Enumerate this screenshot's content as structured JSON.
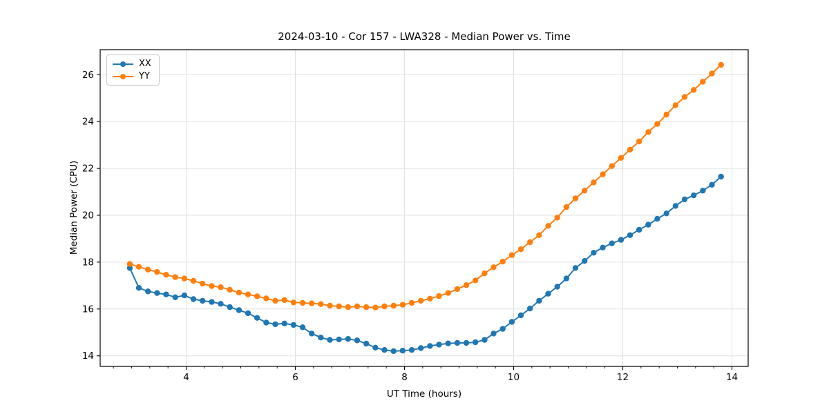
{
  "chart_data": {
    "type": "line",
    "title": "2024-03-10 - Cor 157 - LWA328 - Median Power vs. Time",
    "xlabel": "UT Time (hours)",
    "ylabel": "Median Power (CPU)",
    "xlim": [
      2.424,
      14.297
    ],
    "ylim": [
      13.549,
      27.068
    ],
    "xticks": [
      4,
      6,
      8,
      10,
      12,
      14
    ],
    "yticks": [
      14,
      16,
      18,
      20,
      22,
      24,
      26
    ],
    "x_minor_step": 0.33333,
    "grid": true,
    "grid_color": "#e0e0e0",
    "legend_position": "upper-left",
    "marker": "circle",
    "x": [
      2.967,
      3.133,
      3.3,
      3.467,
      3.633,
      3.8,
      3.967,
      4.133,
      4.3,
      4.467,
      4.633,
      4.8,
      4.967,
      5.133,
      5.3,
      5.467,
      5.633,
      5.8,
      5.967,
      6.133,
      6.3,
      6.467,
      6.633,
      6.8,
      6.967,
      7.133,
      7.3,
      7.467,
      7.633,
      7.8,
      7.967,
      8.133,
      8.3,
      8.467,
      8.633,
      8.8,
      8.967,
      9.133,
      9.3,
      9.467,
      9.633,
      9.8,
      9.967,
      10.133,
      10.3,
      10.467,
      10.633,
      10.8,
      10.967,
      11.133,
      11.3,
      11.467,
      11.633,
      11.8,
      11.967,
      12.133,
      12.3,
      12.467,
      12.633,
      12.8,
      12.967,
      13.133,
      13.3,
      13.467,
      13.633,
      13.8
    ],
    "series": [
      {
        "name": "XX",
        "color": "#1f77b4",
        "values": [
          17.75,
          16.9,
          16.75,
          16.68,
          16.62,
          16.5,
          16.58,
          16.42,
          16.35,
          16.3,
          16.22,
          16.08,
          15.95,
          15.82,
          15.62,
          15.42,
          15.35,
          15.38,
          15.32,
          15.22,
          14.95,
          14.78,
          14.68,
          14.7,
          14.72,
          14.66,
          14.52,
          14.35,
          14.25,
          14.2,
          14.22,
          14.25,
          14.33,
          14.42,
          14.48,
          14.53,
          14.55,
          14.55,
          14.58,
          14.68,
          14.95,
          15.15,
          15.45,
          15.73,
          16.02,
          16.35,
          16.65,
          16.95,
          17.3,
          17.75,
          18.05,
          18.4,
          18.62,
          18.8,
          18.95,
          19.15,
          19.38,
          19.6,
          19.85,
          20.08,
          20.4,
          20.68,
          20.85,
          21.05,
          21.3,
          21.65
        ]
      },
      {
        "name": "YY",
        "color": "#ff7f0e",
        "values": [
          17.92,
          17.8,
          17.68,
          17.58,
          17.46,
          17.36,
          17.3,
          17.2,
          17.08,
          16.98,
          16.93,
          16.82,
          16.7,
          16.62,
          16.54,
          16.45,
          16.35,
          16.38,
          16.28,
          16.26,
          16.24,
          16.21,
          16.14,
          16.11,
          16.08,
          16.11,
          16.08,
          16.06,
          16.11,
          16.14,
          16.18,
          16.26,
          16.35,
          16.44,
          16.55,
          16.68,
          16.85,
          17.02,
          17.22,
          17.52,
          17.78,
          18.02,
          18.3,
          18.55,
          18.85,
          19.15,
          19.55,
          19.9,
          20.35,
          20.72,
          21.05,
          21.4,
          21.75,
          22.1,
          22.45,
          22.8,
          23.15,
          23.55,
          23.9,
          24.3,
          24.7,
          25.05,
          25.35,
          25.7,
          26.05,
          26.42
        ]
      }
    ]
  }
}
